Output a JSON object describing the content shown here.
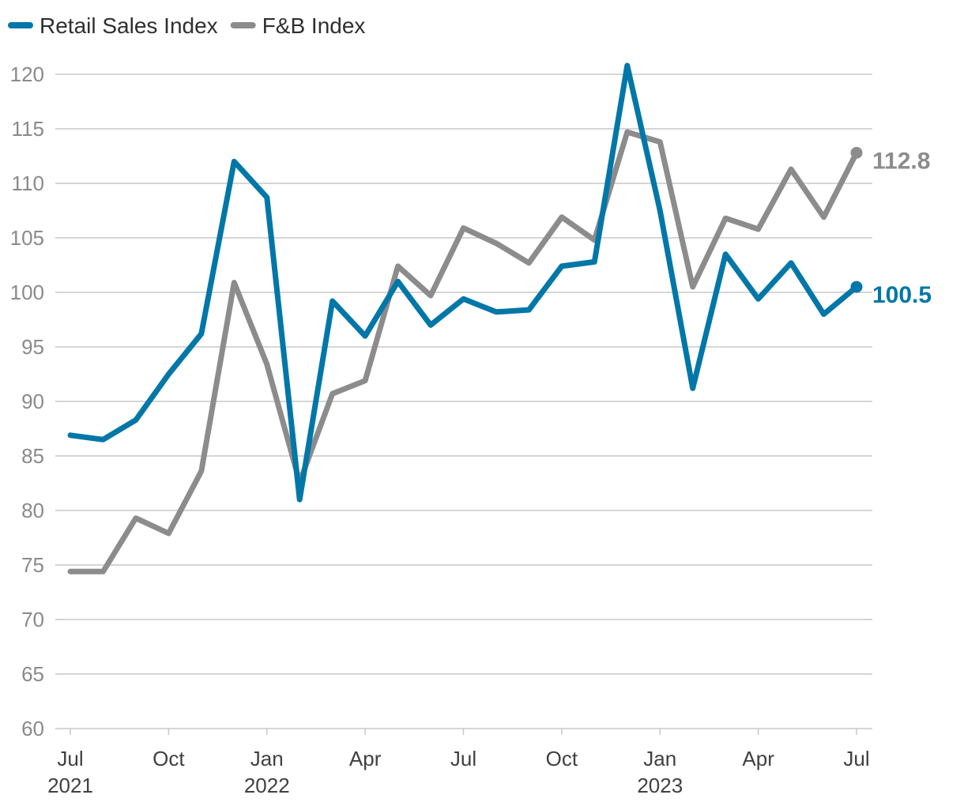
{
  "chart_data": {
    "type": "line",
    "title": "",
    "xlabel": "",
    "ylabel": "",
    "ylim": [
      60,
      120
    ],
    "yticks": [
      60,
      65,
      70,
      75,
      80,
      85,
      90,
      95,
      100,
      105,
      110,
      115,
      120
    ],
    "grid": true,
    "legend_position": "top-left",
    "x_tick_labels": [
      {
        "index": 0,
        "month": "Jul",
        "year": "2021"
      },
      {
        "index": 3,
        "month": "Oct",
        "year": ""
      },
      {
        "index": 6,
        "month": "Jan",
        "year": "2022"
      },
      {
        "index": 9,
        "month": "Apr",
        "year": ""
      },
      {
        "index": 12,
        "month": "Jul",
        "year": ""
      },
      {
        "index": 15,
        "month": "Oct",
        "year": ""
      },
      {
        "index": 18,
        "month": "Jan",
        "year": "2023"
      },
      {
        "index": 21,
        "month": "Apr",
        "year": ""
      },
      {
        "index": 24,
        "month": "Jul",
        "year": ""
      }
    ],
    "x": [
      "2021-07",
      "2021-08",
      "2021-09",
      "2021-10",
      "2021-11",
      "2021-12",
      "2022-01",
      "2022-02",
      "2022-03",
      "2022-04",
      "2022-05",
      "2022-06",
      "2022-07",
      "2022-08",
      "2022-09",
      "2022-10",
      "2022-11",
      "2022-12",
      "2023-01",
      "2023-02",
      "2023-03",
      "2023-04",
      "2023-05",
      "2023-06",
      "2023-07"
    ],
    "series": [
      {
        "name": "Retail Sales Index",
        "color": "#0077a8",
        "end_label": "100.5",
        "values": [
          86.9,
          86.5,
          88.3,
          92.5,
          96.2,
          112.0,
          108.7,
          81.0,
          99.2,
          96.0,
          101.0,
          97.0,
          99.4,
          98.2,
          98.4,
          102.4,
          102.8,
          120.8,
          107.5,
          91.2,
          103.5,
          99.4,
          102.7,
          98.0,
          100.5
        ]
      },
      {
        "name": "F&B Index",
        "color": "#8c8c8c",
        "end_label": "112.8",
        "values": [
          74.4,
          74.4,
          79.3,
          77.9,
          83.6,
          100.9,
          93.4,
          82.6,
          90.7,
          91.9,
          102.4,
          99.7,
          105.9,
          104.5,
          102.7,
          106.9,
          104.8,
          114.7,
          113.8,
          100.5,
          106.8,
          105.8,
          111.3,
          106.9,
          112.8
        ]
      }
    ]
  }
}
